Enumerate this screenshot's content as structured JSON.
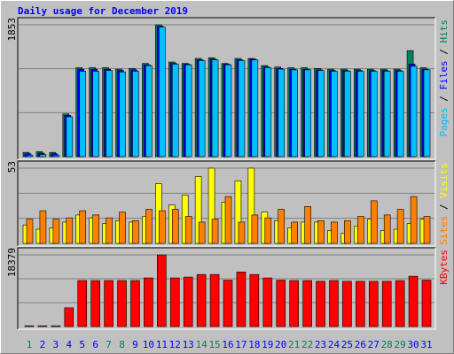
{
  "chart_data": [
    {
      "type": "bar",
      "title": "Daily usage for December 2019",
      "ylim": [
        0,
        1853
      ],
      "yticks": [
        1853
      ],
      "legend": "right",
      "series": [
        {
          "name": "Hits",
          "color": "#00805c",
          "values": [
            60,
            70,
            60,
            600,
            1250,
            1250,
            1250,
            1230,
            1240,
            1310,
            1853,
            1330,
            1310,
            1380,
            1390,
            1310,
            1380,
            1380,
            1280,
            1260,
            1250,
            1250,
            1240,
            1230,
            1230,
            1230,
            1230,
            1230,
            1230,
            1490,
            1250
          ]
        },
        {
          "name": "Files",
          "color": "#0000ff",
          "values": [
            40,
            50,
            40,
            580,
            1230,
            1230,
            1230,
            1210,
            1220,
            1290,
            1830,
            1310,
            1300,
            1360,
            1370,
            1300,
            1360,
            1370,
            1260,
            1240,
            1230,
            1230,
            1220,
            1210,
            1210,
            1210,
            1210,
            1210,
            1210,
            1300,
            1230
          ]
        },
        {
          "name": "Pages",
          "color": "#00c0ff",
          "values": [
            20,
            30,
            20,
            560,
            1200,
            1200,
            1210,
            1190,
            1200,
            1280,
            1820,
            1300,
            1290,
            1350,
            1360,
            1290,
            1350,
            1360,
            1250,
            1230,
            1220,
            1220,
            1210,
            1200,
            1200,
            1200,
            1200,
            1200,
            1200,
            1270,
            1220
          ]
        }
      ]
    },
    {
      "type": "bar",
      "ylim": [
        0,
        53
      ],
      "yticks": [
        53
      ],
      "legend": "right",
      "series": [
        {
          "name": "Visits",
          "color": "#ffff00",
          "values": [
            13,
            10,
            11,
            15,
            20,
            18,
            14,
            16,
            15,
            19,
            42,
            27,
            34,
            47,
            53,
            29,
            44,
            53,
            22,
            16,
            11,
            15,
            15,
            9,
            7,
            12,
            17,
            9,
            10,
            14,
            17
          ]
        },
        {
          "name": "Sites",
          "color": "#ff8000",
          "values": [
            17,
            23,
            17,
            18,
            23,
            20,
            18,
            22,
            16,
            24,
            23,
            24,
            19,
            15,
            17,
            33,
            15,
            20,
            18,
            24,
            15,
            26,
            16,
            15,
            16,
            19,
            30,
            20,
            24,
            33,
            19
          ]
        }
      ]
    },
    {
      "type": "bar",
      "ylim": [
        0,
        18379
      ],
      "yticks": [
        18379
      ],
      "legend": "right",
      "categories": [
        "1",
        "2",
        "3",
        "4",
        "5",
        "6",
        "7",
        "8",
        "9",
        "10",
        "11",
        "12",
        "13",
        "14",
        "15",
        "16",
        "17",
        "18",
        "19",
        "20",
        "21",
        "22",
        "23",
        "24",
        "25",
        "26",
        "27",
        "28",
        "29",
        "30",
        "31"
      ],
      "category_colors": [
        "#00805c",
        "#0000ff",
        "#0000ff",
        "#0000ff",
        "#0000ff",
        "#0000ff",
        "#00805c",
        "#00805c",
        "#0000ff",
        "#0000ff",
        "#0000ff",
        "#0000ff",
        "#0000ff",
        "#00805c",
        "#00805c",
        "#0000ff",
        "#0000ff",
        "#0000ff",
        "#0000ff",
        "#0000ff",
        "#00805c",
        "#00805c",
        "#0000ff",
        "#0000ff",
        "#0000ff",
        "#0000ff",
        "#0000ff",
        "#00805c",
        "#00805c",
        "#0000ff",
        "#0000ff"
      ],
      "series": [
        {
          "name": "KBytes",
          "color": "#ff0000",
          "values": [
            200,
            200,
            200,
            4800,
            11800,
            11800,
            11800,
            11800,
            11800,
            12470,
            18379,
            12470,
            12690,
            13350,
            13350,
            11900,
            14000,
            13350,
            12470,
            11900,
            11800,
            11800,
            11600,
            11800,
            11600,
            11600,
            11600,
            11600,
            11800,
            12900,
            11900
          ]
        }
      ]
    }
  ]
}
